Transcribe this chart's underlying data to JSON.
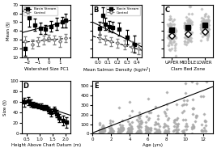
{
  "panel_A": {
    "label": "A",
    "xlabel": "Watershed Size PC1",
    "ylabel": "Mean (§)",
    "xlim": [
      -2.5,
      2.0
    ],
    "ylim": [
      10,
      70
    ],
    "yticks": [
      10,
      20,
      30,
      40,
      50,
      60,
      70
    ],
    "xticks": [
      -2,
      -1,
      0,
      1
    ],
    "basin_x": [
      -2.2,
      -1.8,
      -1.3,
      -0.8,
      -0.3,
      0.2,
      0.7,
      1.2,
      1.5
    ],
    "basin_y": [
      20,
      55,
      47,
      43,
      42,
      45,
      48,
      50,
      52
    ],
    "basin_yerr": [
      8,
      10,
      7,
      6,
      5,
      6,
      7,
      6,
      8
    ],
    "control_x": [
      -2.2,
      -1.5,
      -1.0,
      -0.5,
      0.0,
      0.5,
      1.0,
      1.5
    ],
    "control_y": [
      28,
      25,
      28,
      30,
      32,
      30,
      28,
      32
    ],
    "control_yerr": [
      6,
      5,
      5,
      5,
      4,
      5,
      6,
      5
    ],
    "basin_line_x": [
      -2.5,
      2.0
    ],
    "basin_line_y": [
      38,
      52
    ],
    "control_line_x": [
      -2.5,
      2.0
    ],
    "control_line_y": [
      27,
      32
    ]
  },
  "panel_B": {
    "label": "B",
    "xlabel": "Mean Salmon Density (kg/m²)",
    "xlim": [
      -0.05,
      0.45
    ],
    "ylim": [
      10,
      70
    ],
    "yticks": [
      10,
      20,
      30,
      40,
      50,
      60,
      70
    ],
    "xticks": [
      0.0,
      0.1,
      0.2,
      0.3,
      0.4
    ],
    "basin_x": [
      0.02,
      0.05,
      0.08,
      0.12,
      0.15,
      0.22,
      0.3,
      0.38
    ],
    "basin_y": [
      43,
      58,
      48,
      45,
      44,
      42,
      33,
      25
    ],
    "basin_yerr": [
      7,
      9,
      7,
      6,
      6,
      7,
      8,
      10
    ],
    "control_x": [
      0.02,
      0.08,
      0.14,
      0.2,
      0.28,
      0.35,
      0.42
    ],
    "control_y": [
      32,
      30,
      28,
      26,
      24,
      22,
      20
    ],
    "control_yerr": [
      5,
      5,
      5,
      5,
      5,
      6,
      6
    ],
    "basin_line_x": [
      -0.05,
      0.45
    ],
    "basin_line_y": [
      50,
      22
    ],
    "control_line_x": [
      -0.05,
      0.45
    ],
    "control_line_y": [
      34,
      18
    ]
  },
  "panel_C": {
    "label": "C",
    "xlabel": "Clam Bed Zone",
    "xlim": [
      -0.5,
      2.5
    ],
    "ylim": [
      10,
      70
    ],
    "yticks": [
      10,
      20,
      30,
      40,
      50,
      60,
      70
    ],
    "xticks": [
      0,
      1,
      2
    ],
    "xticklabels": [
      "UPPER",
      "MIDDLE",
      "LOWER"
    ],
    "scatter_zones": [
      0,
      1,
      2
    ],
    "basin_means": [
      38,
      42,
      44
    ],
    "control_means": [
      35,
      38,
      40
    ]
  },
  "panel_D": {
    "label": "D",
    "xlabel": "Height Above Chart Datum (m)",
    "ylabel": "Size (§)",
    "xlim": [
      0.3,
      2.2
    ],
    "ylim": [
      0,
      100
    ],
    "yticks": [
      0,
      20,
      40,
      60,
      80,
      100
    ],
    "xticks": [
      0.5,
      1.0,
      1.5,
      2.0
    ],
    "bin_x": [
      0.4,
      0.55,
      0.65,
      0.75,
      0.85,
      0.95,
      1.05,
      1.15,
      1.25,
      1.35,
      1.45,
      1.55,
      1.65,
      1.75,
      1.9,
      2.05
    ],
    "bin_y": [
      60,
      62,
      58,
      55,
      54,
      53,
      52,
      50,
      50,
      45,
      40,
      45,
      38,
      30,
      25,
      22
    ],
    "bin_yerr": [
      8,
      8,
      7,
      6,
      5,
      5,
      5,
      5,
      5,
      6,
      7,
      6,
      7,
      8,
      9,
      10
    ],
    "line_x": [
      0.3,
      2.2
    ],
    "line_y": [
      65,
      35
    ]
  },
  "panel_E": {
    "label": "E",
    "xlabel": "Age (yrs)",
    "xlim": [
      0,
      13
    ],
    "ylim": [
      0,
      550
    ],
    "yticks": [
      0,
      100,
      200,
      300,
      400,
      500
    ],
    "xticks": [
      0,
      2,
      4,
      6,
      8,
      10,
      12
    ],
    "line_x": [
      0,
      13
    ],
    "line_y": [
      10,
      490
    ]
  },
  "legend_basin": "Basin Stream",
  "legend_control": "Control",
  "background_color": "#ffffff",
  "scatter_color": "#aaaaaa",
  "basin_marker": "s",
  "control_marker": "D"
}
